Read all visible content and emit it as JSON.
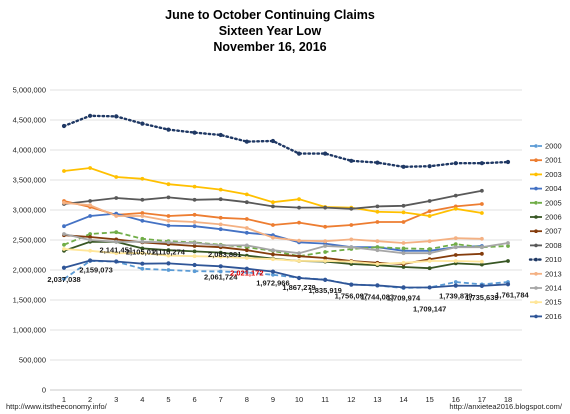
{
  "chart_data": {
    "type": "line",
    "title": [
      "June to October Continuing Claims",
      "Sixteen Year Low",
      "November 16, 2016"
    ],
    "x": [
      1,
      2,
      3,
      4,
      5,
      6,
      7,
      8,
      9,
      10,
      11,
      12,
      13,
      14,
      15,
      16,
      17,
      18
    ],
    "ylim": [
      0,
      5000000
    ],
    "yticks": [
      "0",
      "500,000",
      "1,000,000",
      "1,500,000",
      "2,000,000",
      "2,500,000",
      "3,000,000",
      "3,500,000",
      "4,000,000",
      "4,500,000",
      "5,000,000"
    ],
    "legend_position": "right",
    "series": [
      {
        "name": "2000",
        "color": "#5b9bd5",
        "style": "dashed",
        "values": [
          1850000,
          2150000,
          2140000,
          2020000,
          2000000,
          1980000,
          1975000,
          1960000,
          1920000,
          1870000,
          1840000,
          1760000,
          1740000,
          1700000,
          1710000,
          1800000,
          1760000,
          1800000
        ]
      },
      {
        "name": "2001",
        "color": "#ed7d31",
        "style": "solid",
        "values": [
          3150000,
          3050000,
          2920000,
          2950000,
          2900000,
          2920000,
          2870000,
          2850000,
          2750000,
          2790000,
          2720000,
          2750000,
          2800000,
          2800000,
          2980000,
          3060000,
          3100000,
          null
        ]
      },
      {
        "name": "2003",
        "color": "#ffc000",
        "style": "solid",
        "values": [
          3650000,
          3700000,
          3550000,
          3520000,
          3430000,
          3390000,
          3340000,
          3260000,
          3130000,
          3180000,
          3050000,
          3040000,
          2970000,
          2960000,
          2900000,
          3020000,
          2950000,
          null
        ]
      },
      {
        "name": "2004",
        "color": "#4472c4",
        "style": "solid",
        "values": [
          2730000,
          2900000,
          2940000,
          2820000,
          2740000,
          2730000,
          2680000,
          2620000,
          2580000,
          2460000,
          2440000,
          2380000,
          2380000,
          2320000,
          2320000,
          2380000,
          2400000,
          null
        ]
      },
      {
        "name": "2005",
        "color": "#70ad47",
        "style": "dashed",
        "values": [
          2420000,
          2600000,
          2630000,
          2520000,
          2480000,
          2460000,
          2420000,
          2380000,
          2320000,
          2230000,
          2300000,
          2350000,
          2380000,
          2360000,
          2350000,
          2430000,
          2380000,
          2400000
        ]
      },
      {
        "name": "2006",
        "color": "#375623",
        "style": "solid",
        "values": [
          2320000,
          2470000,
          2470000,
          2360000,
          2330000,
          2310000,
          2290000,
          2240000,
          2190000,
          2150000,
          2140000,
          2100000,
          2080000,
          2050000,
          2030000,
          2110000,
          2090000,
          2150000
        ]
      },
      {
        "name": "2007",
        "color": "#843c0c",
        "style": "solid",
        "values": [
          2580000,
          2550000,
          2510000,
          2460000,
          2430000,
          2400000,
          2380000,
          2330000,
          2260000,
          2230000,
          2200000,
          2150000,
          2120000,
          2100000,
          2180000,
          2250000,
          2270000,
          null
        ]
      },
      {
        "name": "2008",
        "color": "#595959",
        "style": "solid",
        "values": [
          3100000,
          3150000,
          3200000,
          3170000,
          3210000,
          3170000,
          3180000,
          3130000,
          3060000,
          3040000,
          3040000,
          3020000,
          3060000,
          3070000,
          3150000,
          3240000,
          3320000,
          null
        ]
      },
      {
        "name": "2010",
        "color": "#1f3864",
        "style": "dotted",
        "values": [
          4400000,
          4570000,
          4560000,
          4440000,
          4340000,
          4290000,
          4250000,
          4140000,
          4150000,
          3940000,
          3940000,
          3820000,
          3790000,
          3720000,
          3730000,
          3780000,
          3780000,
          3800000
        ]
      },
      {
        "name": "2013",
        "color": "#f4b183",
        "style": "solid",
        "values": [
          3120000,
          3080000,
          2900000,
          2900000,
          2820000,
          2800000,
          2760000,
          2700000,
          2540000,
          2490000,
          2480000,
          2510000,
          2480000,
          2450000,
          2480000,
          2530000,
          2520000,
          null
        ]
      },
      {
        "name": "2014",
        "color": "#a6a6a6",
        "style": "solid",
        "values": [
          2600000,
          2500000,
          2470000,
          2470000,
          2460000,
          2450000,
          2410000,
          2410000,
          2330000,
          2280000,
          2400000,
          2380000,
          2330000,
          2280000,
          2280000,
          2380000,
          2380000,
          2450000
        ]
      },
      {
        "name": "2015",
        "color": "#ffe699",
        "style": "solid",
        "values": [
          2350000,
          2320000,
          2280000,
          2280000,
          2240000,
          2230000,
          2220000,
          2200000,
          2180000,
          2150000,
          2150000,
          2140000,
          2100000,
          2120000,
          2150000,
          2150000,
          2140000,
          null
        ]
      },
      {
        "name": "2016",
        "color": "#2f5597",
        "style": "solid",
        "values": [
          2037038,
          2159073,
          2141451,
          2105011,
          2110274,
          2083881,
          2061724,
          2021172,
          1972966,
          1867279,
          1835919,
          1756097,
          1744083,
          1709974,
          1709147,
          1739879,
          1735639,
          1761784
        ]
      }
    ],
    "annotations": [
      {
        "text": "2,037,038",
        "x": 1,
        "y": 2037038,
        "color": "#1a1a1a"
      },
      {
        "text": "2,159,073",
        "x": 2,
        "y": 2159073,
        "color": "#1a1a1a"
      },
      {
        "text": "2,141,451",
        "x": 3,
        "y": 2141451,
        "color": "#1a1a1a"
      },
      {
        "text": "2,105,011",
        "x": 4,
        "y": 2105011,
        "color": "#1a1a1a"
      },
      {
        "text": "2,110,274",
        "x": 5,
        "y": 2110274,
        "color": "#1a1a1a"
      },
      {
        "text": "2,083,881",
        "x": 7,
        "y": 2083881,
        "color": "#1a1a1a"
      },
      {
        "text": "2,061,724",
        "x": 7,
        "y": 2061724,
        "color": "#1a1a1a"
      },
      {
        "text": "2,021,172",
        "x": 8,
        "y": 2021172,
        "color": "#e00000"
      },
      {
        "text": "1,972,966",
        "x": 9,
        "y": 1972966,
        "color": "#1a1a1a"
      },
      {
        "text": "1,867,279",
        "x": 10,
        "y": 1867279,
        "color": "#1a1a1a"
      },
      {
        "text": "1,835,919",
        "x": 11,
        "y": 1835919,
        "color": "#1a1a1a"
      },
      {
        "text": "1,756,097",
        "x": 12,
        "y": 1756097,
        "color": "#1a1a1a"
      },
      {
        "text": "1,744,083",
        "x": 13,
        "y": 1744083,
        "color": "#1a1a1a"
      },
      {
        "text": "1,709,974",
        "x": 14,
        "y": 1709974,
        "color": "#1a1a1a"
      },
      {
        "text": "1,709,147",
        "x": 15,
        "y": 1709147,
        "color": "#1a1a1a"
      },
      {
        "text": "1,739,879",
        "x": 16,
        "y": 1739879,
        "color": "#1a1a1a"
      },
      {
        "text": "1,735,639",
        "x": 17,
        "y": 1735639,
        "color": "#1a1a1a"
      },
      {
        "text": "1,761,784",
        "x": 18,
        "y": 1761784,
        "color": "#1a1a1a"
      }
    ]
  },
  "footer": {
    "left": "http://www.itstheeconomy.info/",
    "right": "http://anxietea2016.blogspot.com/"
  }
}
